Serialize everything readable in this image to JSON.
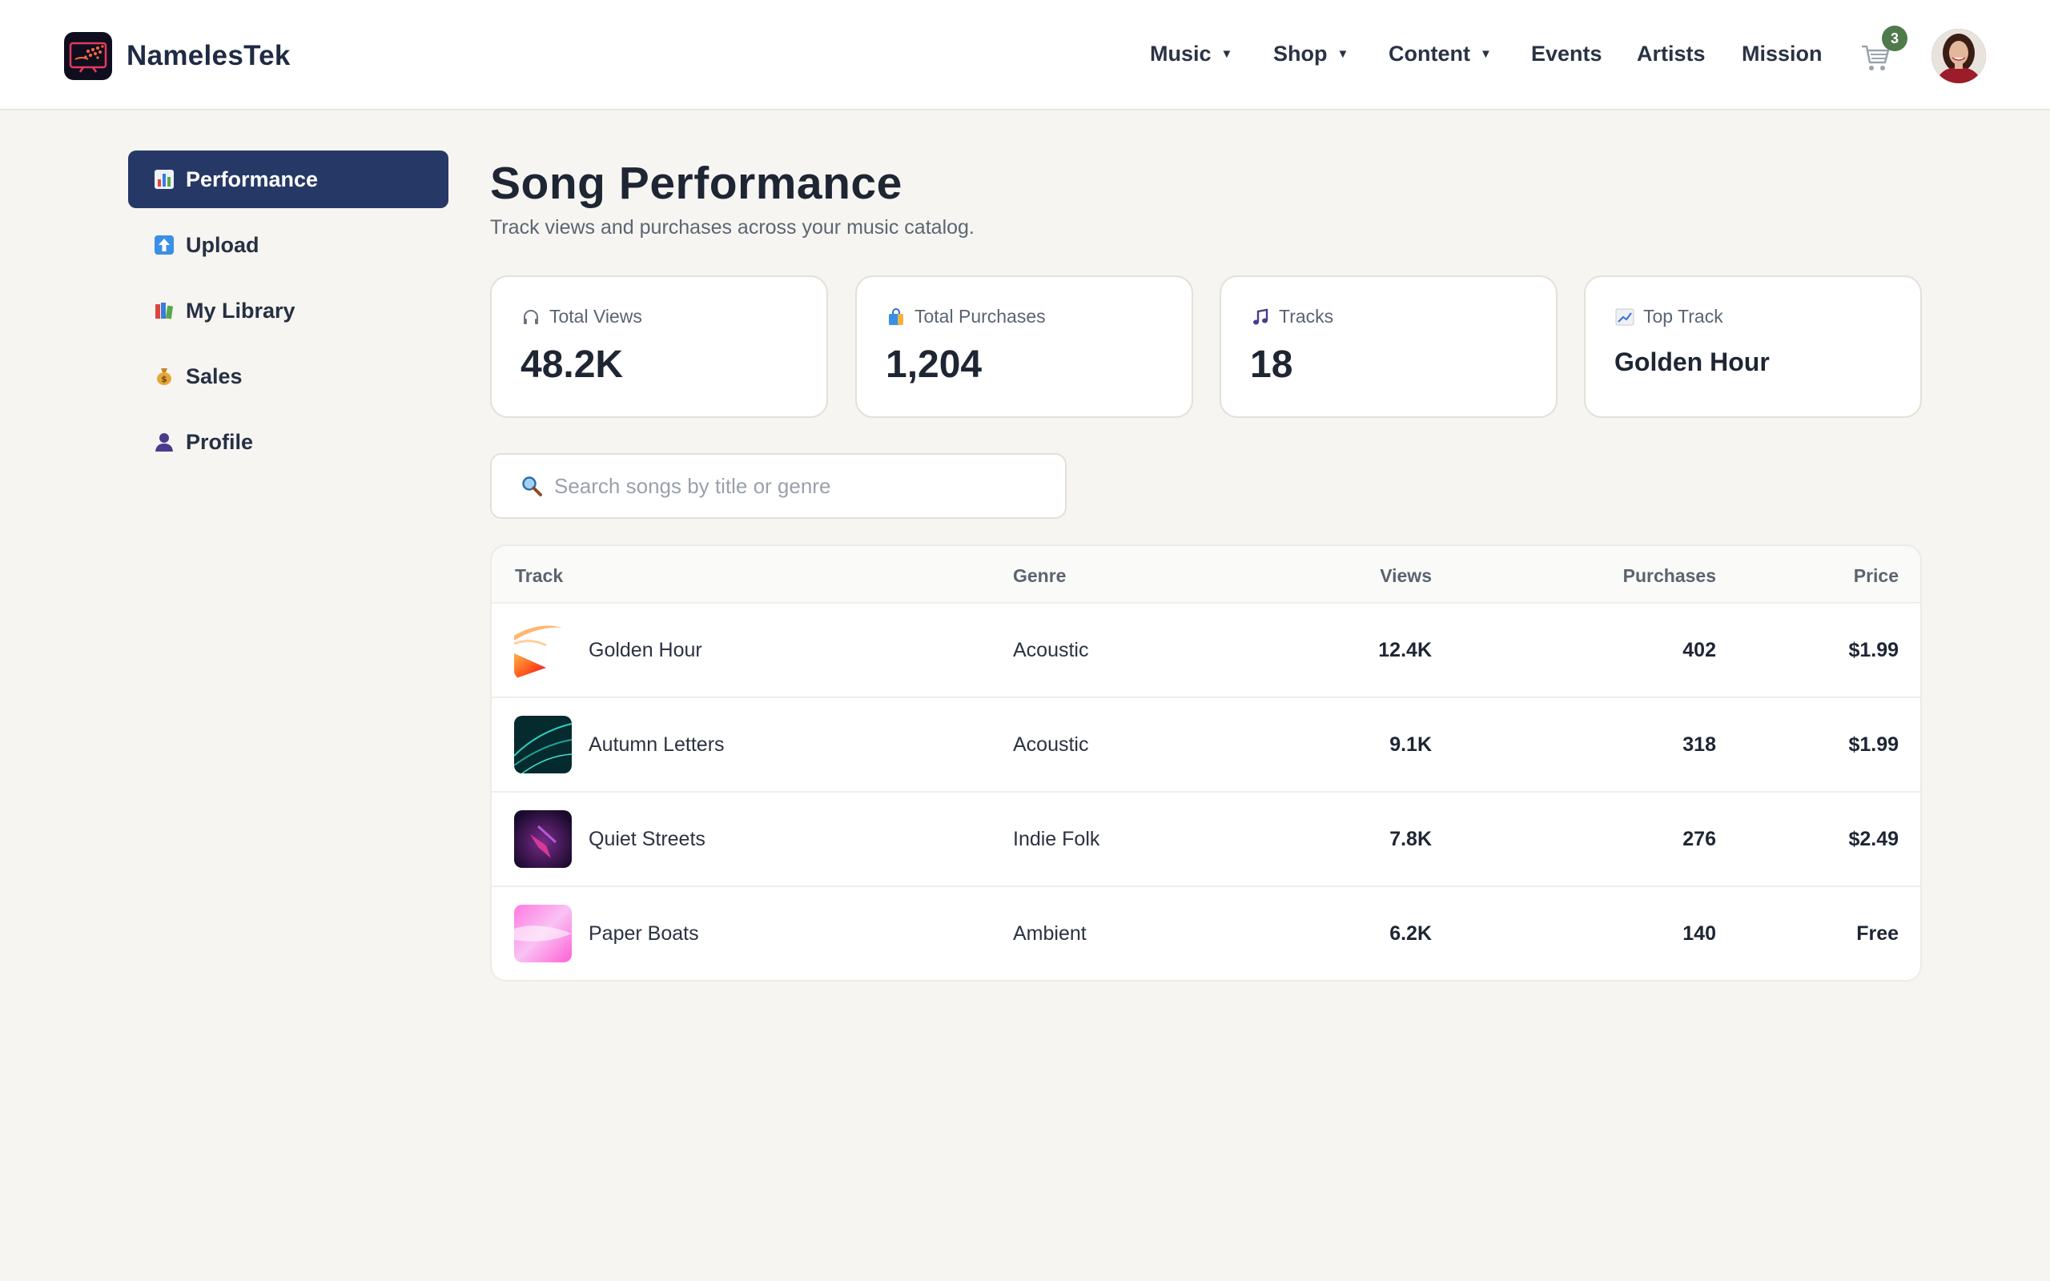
{
  "brand": {
    "name": "NamelesTek"
  },
  "nav": {
    "items": [
      {
        "label": "Music",
        "caret": "▼"
      },
      {
        "label": "Shop",
        "caret": "▼"
      },
      {
        "label": "Content",
        "caret": "▼"
      },
      {
        "label": "Events"
      },
      {
        "label": "Artists"
      },
      {
        "label": "Mission"
      }
    ],
    "cart_count": "3"
  },
  "sidebar": {
    "items": [
      {
        "label": "Performance",
        "icon": "bar-chart-icon",
        "active": true
      },
      {
        "label": "Upload",
        "icon": "upload-arrow-icon"
      },
      {
        "label": "My Library",
        "icon": "books-icon"
      },
      {
        "label": "Sales",
        "icon": "money-bag-icon"
      },
      {
        "label": "Profile",
        "icon": "person-icon"
      }
    ]
  },
  "page": {
    "title": "Song Performance",
    "subtitle": "Track views and purchases across your music catalog."
  },
  "stats": [
    {
      "label": "Total Views",
      "value": "48.2K",
      "icon": "headphones-icon"
    },
    {
      "label": "Total Purchases",
      "value": "1,204",
      "icon": "shopping-bag-icon"
    },
    {
      "label": "Tracks",
      "value": "18",
      "icon": "music-note-icon"
    },
    {
      "label": "Top Track",
      "value": "Golden Hour",
      "icon": "trend-up-icon"
    }
  ],
  "search": {
    "placeholder": "Search songs by title or genre",
    "value": ""
  },
  "table": {
    "headers": {
      "track": "Track",
      "genre": "Genre",
      "views": "Views",
      "purchases": "Purchases",
      "price": "Price"
    },
    "rows": [
      {
        "track": "Golden Hour",
        "genre": "Acoustic",
        "views": "12.4K",
        "purchases": "402",
        "price": "$1.99"
      },
      {
        "track": "Autumn Letters",
        "genre": "Acoustic",
        "views": "9.1K",
        "purchases": "318",
        "price": "$1.99"
      },
      {
        "track": "Quiet Streets",
        "genre": "Indie Folk",
        "views": "7.8K",
        "purchases": "276",
        "price": "$2.49"
      },
      {
        "track": "Paper Boats",
        "genre": "Ambient",
        "views": "6.2K",
        "purchases": "140",
        "price": "Free"
      }
    ]
  },
  "colors": {
    "accent": "#263866",
    "background": "#f6f5f1",
    "badge": "#4f7a4c"
  }
}
